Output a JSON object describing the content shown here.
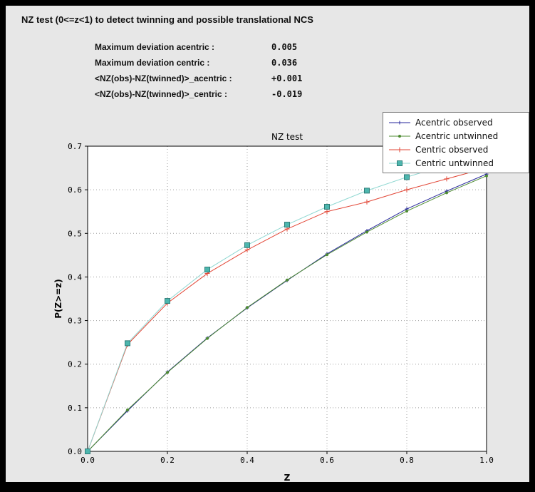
{
  "header": {
    "title": "NZ test (0<=z<1) to detect twinning and possible translational NCS"
  },
  "stats": {
    "rows": [
      {
        "label": "Maximum deviation acentric :",
        "value": "0.005"
      },
      {
        "label": "Maximum deviation centric :",
        "value": "0.036"
      },
      {
        "label": "<NZ(obs)-NZ(twinned)>_acentric :",
        "value": "+0.001"
      },
      {
        "label": "<NZ(obs)-NZ(twinned)>_centric :",
        "value": "-0.019"
      }
    ]
  },
  "colors": {
    "frame": "#000000",
    "panel_bg": "#e7e7e7",
    "plot_bg": "#ffffff",
    "grid": "#a0a0a0",
    "axis": "#000000"
  },
  "chart_data": {
    "type": "line",
    "title": "NZ test",
    "xlabel": "Z",
    "ylabel": "P(Z>=z)",
    "xlim": [
      0.0,
      1.0
    ],
    "ylim": [
      0.0,
      0.7
    ],
    "xticks": [
      0.0,
      0.2,
      0.4,
      0.6,
      0.8,
      1.0
    ],
    "yticks": [
      0.0,
      0.1,
      0.2,
      0.3,
      0.4,
      0.5,
      0.6,
      0.7
    ],
    "grid": "dotted",
    "legend_position": "upper-right",
    "x": [
      0.0,
      0.1,
      0.2,
      0.3,
      0.4,
      0.5,
      0.6,
      0.7,
      0.8,
      0.9,
      1.0
    ],
    "series": [
      {
        "name": "Acentric observed",
        "color": "#26269b",
        "marker": "plus",
        "marker_size": 5,
        "values": [
          0.0,
          0.093,
          0.182,
          0.26,
          0.329,
          0.392,
          0.453,
          0.506,
          0.556,
          0.597,
          0.636
        ]
      },
      {
        "name": "Acentric untwinned",
        "color": "#4d8b31",
        "marker": "dot",
        "marker_size": 4,
        "values": [
          0.0,
          0.095,
          0.181,
          0.259,
          0.33,
          0.393,
          0.451,
          0.503,
          0.551,
          0.593,
          0.632
        ]
      },
      {
        "name": "Centric observed",
        "color": "#e24636",
        "marker": "plus",
        "marker_size": 7,
        "values": [
          0.0,
          0.245,
          0.34,
          0.408,
          0.462,
          0.51,
          0.55,
          0.572,
          0.6,
          0.625,
          0.65
        ]
      },
      {
        "name": "Centric untwinned",
        "color": "#90d8d2",
        "marker": "square",
        "marker_size": 7,
        "marker_fill": "#4db6ae",
        "marker_edge": "#2f7d78",
        "values": [
          0.0,
          0.248,
          0.345,
          0.417,
          0.473,
          0.52,
          0.561,
          0.598,
          0.629,
          0.657,
          0.683
        ]
      }
    ]
  }
}
